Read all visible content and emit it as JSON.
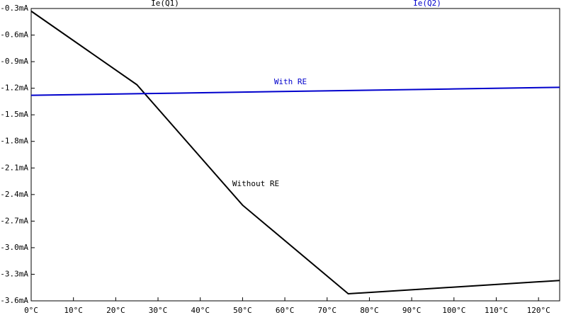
{
  "chart_data": {
    "type": "line",
    "x": [
      0,
      25,
      50,
      75,
      100,
      125
    ],
    "series": [
      {
        "name": "Ie(Q1)",
        "color": "#000000",
        "values": [
          -0.33,
          -1.16,
          -2.52,
          -3.52,
          -3.445,
          -3.37
        ]
      },
      {
        "name": "Ie(Q2)",
        "color": "#0000cc",
        "values": [
          -1.28,
          -1.262,
          -1.244,
          -1.226,
          -1.208,
          -1.19
        ]
      }
    ],
    "annotations": [
      "With RE",
      "Without RE"
    ],
    "xlim": [
      0,
      125
    ],
    "xticks": [
      {
        "value": 0,
        "label": "0°C"
      },
      {
        "value": 10,
        "label": "10°C"
      },
      {
        "value": 20,
        "label": "20°C"
      },
      {
        "value": 30,
        "label": "30°C"
      },
      {
        "value": 40,
        "label": "40°C"
      },
      {
        "value": 50,
        "label": "50°C"
      },
      {
        "value": 60,
        "label": "60°C"
      },
      {
        "value": 70,
        "label": "70°C"
      },
      {
        "value": 80,
        "label": "80°C"
      },
      {
        "value": 90,
        "label": "90°C"
      },
      {
        "value": 100,
        "label": "100°C"
      },
      {
        "value": 110,
        "label": "110°C"
      },
      {
        "value": 120,
        "label": "120°C"
      }
    ],
    "ylim": [
      -3.6,
      -0.3
    ],
    "yticks": [
      {
        "value": -0.3,
        "label": "-0.3mA"
      },
      {
        "value": -0.6,
        "label": "-0.6mA"
      },
      {
        "value": -0.9,
        "label": "-0.9mA"
      },
      {
        "value": -1.2,
        "label": "-1.2mA"
      },
      {
        "value": -1.5,
        "label": "-1.5mA"
      },
      {
        "value": -1.8,
        "label": "-1.8mA"
      },
      {
        "value": -2.1,
        "label": "-2.1mA"
      },
      {
        "value": -2.4,
        "label": "-2.4mA"
      },
      {
        "value": -2.7,
        "label": "-2.7mA"
      },
      {
        "value": -3.0,
        "label": "-3.0mA"
      },
      {
        "value": -3.3,
        "label": "-3.3mA"
      },
      {
        "value": -3.6,
        "label": "-3.6mA"
      }
    ],
    "grid": false
  }
}
